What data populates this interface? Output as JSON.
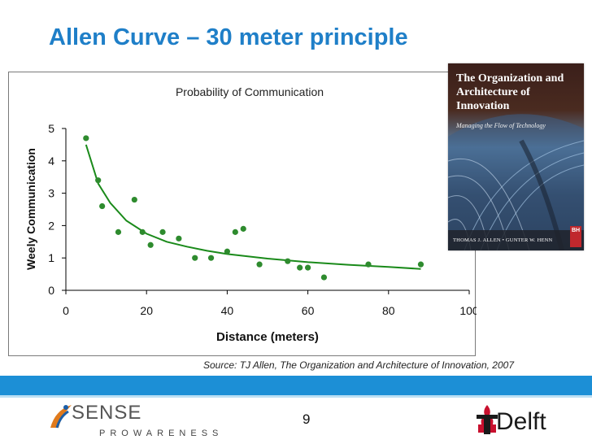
{
  "slide": {
    "title": "Allen Curve – 30 meter principle",
    "source": "Source: TJ Allen, The Organization and Architecture of Innovation, 2007",
    "page_number": "9"
  },
  "book": {
    "title": "The Organization and Architecture of Innovation",
    "subtitle": "Managing the Flow of Technology",
    "authors": "THOMAS J. ALLEN • GUNTER W. HENN",
    "publisher_mark": "BH"
  },
  "footer": {
    "left_logo_word": "SENSE",
    "left_logo_tagline": "PROWARENESS",
    "right_logo_word": "Delft",
    "band_color": "#1c8fd6"
  },
  "chart_data": {
    "type": "scatter",
    "title": "Probability of Communication",
    "xlabel": "Distance (meters)",
    "ylabel": "Weely Communication",
    "xlim": [
      0,
      100
    ],
    "ylim": [
      0,
      5
    ],
    "xticks": [
      "0",
      "20",
      "40",
      "60",
      "80",
      "100"
    ],
    "yticks": [
      "0",
      "1",
      "2",
      "3",
      "4",
      "5"
    ],
    "grid": false,
    "legend": "none",
    "point_color": "#2e8b2e",
    "line_color": "#1a8a1a",
    "points": [
      {
        "x": 5,
        "y": 4.7
      },
      {
        "x": 8,
        "y": 3.4
      },
      {
        "x": 9,
        "y": 2.6
      },
      {
        "x": 13,
        "y": 1.8
      },
      {
        "x": 17,
        "y": 2.8
      },
      {
        "x": 19,
        "y": 1.8
      },
      {
        "x": 21,
        "y": 1.4
      },
      {
        "x": 24,
        "y": 1.8
      },
      {
        "x": 28,
        "y": 1.6
      },
      {
        "x": 32,
        "y": 1.0
      },
      {
        "x": 36,
        "y": 1.0
      },
      {
        "x": 40,
        "y": 1.2
      },
      {
        "x": 42,
        "y": 1.8
      },
      {
        "x": 44,
        "y": 1.9
      },
      {
        "x": 48,
        "y": 0.8
      },
      {
        "x": 55,
        "y": 0.9
      },
      {
        "x": 58,
        "y": 0.7
      },
      {
        "x": 60,
        "y": 0.7
      },
      {
        "x": 64,
        "y": 0.4
      },
      {
        "x": 75,
        "y": 0.8
      },
      {
        "x": 88,
        "y": 0.8
      }
    ],
    "trend_line": {
      "x": [
        5,
        8,
        11,
        15,
        20,
        25,
        30,
        35,
        40,
        50,
        60,
        70,
        80,
        88
      ],
      "y": [
        4.5,
        3.3,
        2.7,
        2.15,
        1.75,
        1.5,
        1.35,
        1.22,
        1.12,
        0.98,
        0.87,
        0.79,
        0.72,
        0.66
      ]
    }
  }
}
